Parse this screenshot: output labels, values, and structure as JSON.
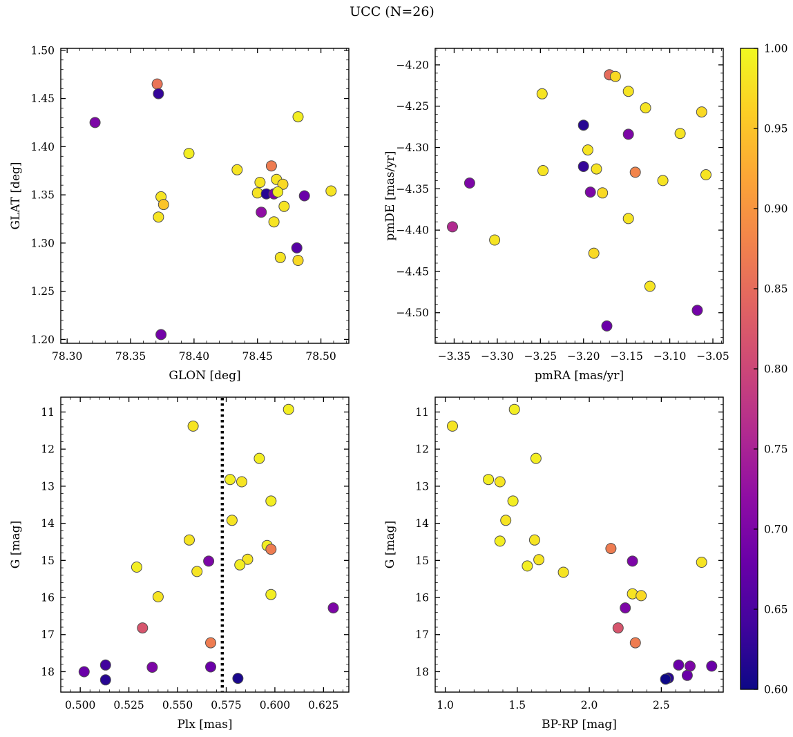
{
  "title": "UCC (N=26)",
  "n_members": 26,
  "style": {
    "background": "#ffffff",
    "axis_color": "#000000",
    "marker_edge": "#4f4f4f",
    "vline_color": "#000000"
  },
  "colormap_stops": [
    "#0d0887",
    "#41049d",
    "#6a00a8",
    "#8f0da4",
    "#b12a90",
    "#cc4778",
    "#e16462",
    "#f2844b",
    "#fca636",
    "#fcce25",
    "#f0f921"
  ],
  "colorbar": {
    "name": "membership-probability",
    "vmin": 0.6,
    "vmax": 1.0,
    "ticks": [
      1.0,
      0.95,
      0.9,
      0.85,
      0.8,
      0.75,
      0.7,
      0.65,
      0.6
    ],
    "tick_labels": [
      "1.00",
      "0.95",
      "0.90",
      "0.85",
      "0.80",
      "0.75",
      "0.70",
      "0.65",
      "0.60"
    ]
  },
  "chart_data": [
    {
      "id": "glon-glat",
      "type": "scatter",
      "xlabel": "GLON [deg]",
      "ylabel": "GLAT [deg]",
      "xlim": [
        78.295,
        78.522
      ],
      "ylim_bottom": 1.196,
      "ylim_top": 1.502,
      "xticks": [
        78.3,
        78.35,
        78.4,
        78.45,
        78.5
      ],
      "xtick_labels": [
        "78.30",
        "78.35",
        "78.40",
        "78.45",
        "78.50"
      ],
      "yticks": [
        1.2,
        1.25,
        1.3,
        1.35,
        1.4,
        1.45,
        1.5
      ],
      "ytick_labels": [
        "1.20",
        "1.25",
        "1.30",
        "1.35",
        "1.40",
        "1.45",
        "1.50"
      ],
      "xminor_step": 0.01,
      "yminor_step": 0.01,
      "points": [
        [
          78.322,
          1.425,
          0.7
        ],
        [
          78.371,
          1.465,
          0.86
        ],
        [
          78.372,
          1.455,
          0.63
        ],
        [
          78.374,
          1.348,
          0.98
        ],
        [
          78.376,
          1.34,
          0.95
        ],
        [
          78.372,
          1.327,
          0.98
        ],
        [
          78.396,
          1.393,
          0.99
        ],
        [
          78.374,
          1.205,
          0.69
        ],
        [
          78.434,
          1.376,
          0.98
        ],
        [
          78.452,
          1.363,
          0.98
        ],
        [
          78.461,
          1.38,
          0.87
        ],
        [
          78.465,
          1.366,
          0.98
        ],
        [
          78.47,
          1.361,
          0.97
        ],
        [
          78.45,
          1.352,
          0.98
        ],
        [
          78.457,
          1.351,
          0.62
        ],
        [
          78.463,
          1.351,
          0.7
        ],
        [
          78.466,
          1.353,
          0.99
        ],
        [
          78.471,
          1.338,
          0.98
        ],
        [
          78.453,
          1.332,
          0.72
        ],
        [
          78.463,
          1.322,
          0.98
        ],
        [
          78.482,
          1.431,
          0.99
        ],
        [
          78.487,
          1.349,
          0.68
        ],
        [
          78.481,
          1.295,
          0.66
        ],
        [
          78.468,
          1.285,
          0.98
        ],
        [
          78.482,
          1.282,
          0.97
        ],
        [
          78.508,
          1.354,
          0.98
        ]
      ]
    },
    {
      "id": "pmra-pmde",
      "type": "scatter",
      "xlabel": "pmRA [mas/yr]",
      "ylabel": "pmDE [mas/yr]",
      "xlim": [
        -3.372,
        -3.038
      ],
      "ylim_bottom": -4.537,
      "ylim_top": -4.18,
      "xticks": [
        -3.35,
        -3.3,
        -3.25,
        -3.2,
        -3.15,
        -3.1,
        -3.05
      ],
      "xtick_labels": [
        "−3.35",
        "−3.30",
        "−3.25",
        "−3.20",
        "−3.15",
        "−3.10",
        "−3.05"
      ],
      "yticks": [
        -4.2,
        -4.25,
        -4.3,
        -4.35,
        -4.4,
        -4.45,
        -4.5
      ],
      "ytick_labels": [
        "−4.20",
        "−4.25",
        "−4.30",
        "−4.35",
        "−4.40",
        "−4.45",
        "−4.50"
      ],
      "xminor_step": 0.01,
      "yminor_step": 0.01,
      "points": [
        [
          -3.17,
          -4.212,
          0.85
        ],
        [
          -3.163,
          -4.214,
          0.97
        ],
        [
          -3.148,
          -4.232,
          0.98
        ],
        [
          -3.248,
          -4.235,
          0.98
        ],
        [
          -3.128,
          -4.252,
          0.98
        ],
        [
          -3.063,
          -4.257,
          0.97
        ],
        [
          -3.2,
          -4.273,
          0.62
        ],
        [
          -3.148,
          -4.284,
          0.7
        ],
        [
          -3.088,
          -4.283,
          0.98
        ],
        [
          -3.195,
          -4.303,
          0.98
        ],
        [
          -3.2,
          -4.323,
          0.63
        ],
        [
          -3.247,
          -4.328,
          0.98
        ],
        [
          -3.185,
          -4.326,
          0.98
        ],
        [
          -3.14,
          -4.33,
          0.88
        ],
        [
          -3.058,
          -4.333,
          0.98
        ],
        [
          -3.332,
          -4.343,
          0.7
        ],
        [
          -3.108,
          -4.34,
          0.98
        ],
        [
          -3.192,
          -4.354,
          0.7
        ],
        [
          -3.178,
          -4.355,
          0.97
        ],
        [
          -3.148,
          -4.386,
          0.98
        ],
        [
          -3.352,
          -4.396,
          0.76
        ],
        [
          -3.303,
          -4.412,
          0.98
        ],
        [
          -3.188,
          -4.428,
          0.97
        ],
        [
          -3.123,
          -4.468,
          0.98
        ],
        [
          -3.068,
          -4.497,
          0.69
        ],
        [
          -3.173,
          -4.516,
          0.68
        ]
      ]
    },
    {
      "id": "plx-g",
      "type": "scatter",
      "xlabel": "Plx [mas]",
      "ylabel": "G [mag]",
      "xlim": [
        0.49,
        0.638
      ],
      "ylim_bottom": 18.55,
      "ylim_top": 10.6,
      "xticks": [
        0.5,
        0.525,
        0.55,
        0.575,
        0.6,
        0.625
      ],
      "xtick_labels": [
        "0.500",
        "0.525",
        "0.550",
        "0.575",
        "0.600",
        "0.625"
      ],
      "yticks": [
        11,
        12,
        13,
        14,
        15,
        16,
        17,
        18
      ],
      "ytick_labels": [
        "11",
        "12",
        "13",
        "14",
        "15",
        "16",
        "17",
        "18"
      ],
      "xminor_step": 0.005,
      "yminor_step": 0.2,
      "vline": 0.573,
      "points": [
        [
          0.607,
          10.93,
          0.99
        ],
        [
          0.558,
          11.38,
          0.98
        ],
        [
          0.592,
          12.25,
          0.99
        ],
        [
          0.577,
          12.82,
          0.99
        ],
        [
          0.583,
          12.88,
          0.98
        ],
        [
          0.598,
          13.4,
          0.99
        ],
        [
          0.578,
          13.92,
          0.98
        ],
        [
          0.556,
          14.45,
          0.98
        ],
        [
          0.596,
          14.6,
          0.99
        ],
        [
          0.598,
          14.7,
          0.87
        ],
        [
          0.566,
          15.02,
          0.7
        ],
        [
          0.586,
          14.97,
          0.98
        ],
        [
          0.582,
          15.12,
          0.99
        ],
        [
          0.56,
          15.3,
          0.98
        ],
        [
          0.529,
          15.18,
          0.99
        ],
        [
          0.54,
          15.98,
          0.98
        ],
        [
          0.598,
          15.92,
          0.99
        ],
        [
          0.63,
          16.28,
          0.7
        ],
        [
          0.532,
          16.82,
          0.82
        ],
        [
          0.567,
          17.22,
          0.87
        ],
        [
          0.537,
          17.88,
          0.7
        ],
        [
          0.567,
          17.87,
          0.68
        ],
        [
          0.513,
          17.82,
          0.64
        ],
        [
          0.502,
          18.0,
          0.68
        ],
        [
          0.513,
          18.22,
          0.62
        ],
        [
          0.581,
          18.18,
          0.61
        ]
      ]
    },
    {
      "id": "bprp-g",
      "type": "scatter",
      "xlabel": "BP-RP [mag]",
      "ylabel": "G [mag]",
      "xlim": [
        0.93,
        2.93
      ],
      "ylim_bottom": 18.55,
      "ylim_top": 10.6,
      "xticks": [
        1.0,
        1.5,
        2.0,
        2.5
      ],
      "xtick_labels": [
        "1.0",
        "1.5",
        "2.0",
        "2.5"
      ],
      "yticks": [
        11,
        12,
        13,
        14,
        15,
        16,
        17,
        18
      ],
      "ytick_labels": [
        "11",
        "12",
        "13",
        "14",
        "15",
        "16",
        "17",
        "18"
      ],
      "xminor_step": 0.1,
      "yminor_step": 0.2,
      "points": [
        [
          1.48,
          10.93,
          0.99
        ],
        [
          1.05,
          11.38,
          0.98
        ],
        [
          1.63,
          12.25,
          0.99
        ],
        [
          1.3,
          12.82,
          0.99
        ],
        [
          1.38,
          12.88,
          0.98
        ],
        [
          1.47,
          13.4,
          0.99
        ],
        [
          1.42,
          13.92,
          0.98
        ],
        [
          1.38,
          14.48,
          0.99
        ],
        [
          1.62,
          14.45,
          0.98
        ],
        [
          2.15,
          14.68,
          0.87
        ],
        [
          1.65,
          14.98,
          0.98
        ],
        [
          1.57,
          15.15,
          0.99
        ],
        [
          1.82,
          15.32,
          0.98
        ],
        [
          2.78,
          15.05,
          0.98
        ],
        [
          2.3,
          15.02,
          0.7
        ],
        [
          2.3,
          15.9,
          0.98
        ],
        [
          2.36,
          15.95,
          0.97
        ],
        [
          2.25,
          16.28,
          0.7
        ],
        [
          2.2,
          16.82,
          0.82
        ],
        [
          2.32,
          17.22,
          0.87
        ],
        [
          2.62,
          17.82,
          0.68
        ],
        [
          2.7,
          17.85,
          0.7
        ],
        [
          2.85,
          17.85,
          0.68
        ],
        [
          2.68,
          18.1,
          0.68
        ],
        [
          2.55,
          18.17,
          0.62
        ],
        [
          2.53,
          18.2,
          0.6
        ]
      ]
    }
  ]
}
